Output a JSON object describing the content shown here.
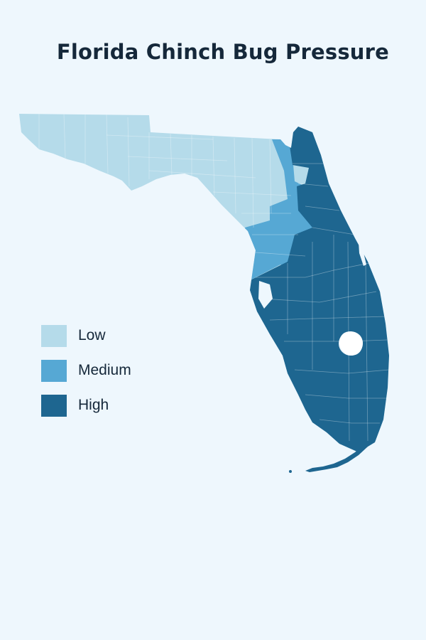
{
  "map": {
    "title": "Florida Chinch Bug Pressure",
    "region": "Florida",
    "colors": {
      "low": "#b5dbea",
      "medium": "#56a8d4",
      "high": "#1e6690",
      "background": "#eef7fd",
      "title": "#15283a"
    }
  },
  "legend": {
    "items": [
      {
        "key": "low",
        "label": "Low",
        "color": "#b5dbea"
      },
      {
        "key": "medium",
        "label": "Medium",
        "color": "#56a8d4"
      },
      {
        "key": "high",
        "label": "High",
        "color": "#1e6690"
      }
    ]
  }
}
